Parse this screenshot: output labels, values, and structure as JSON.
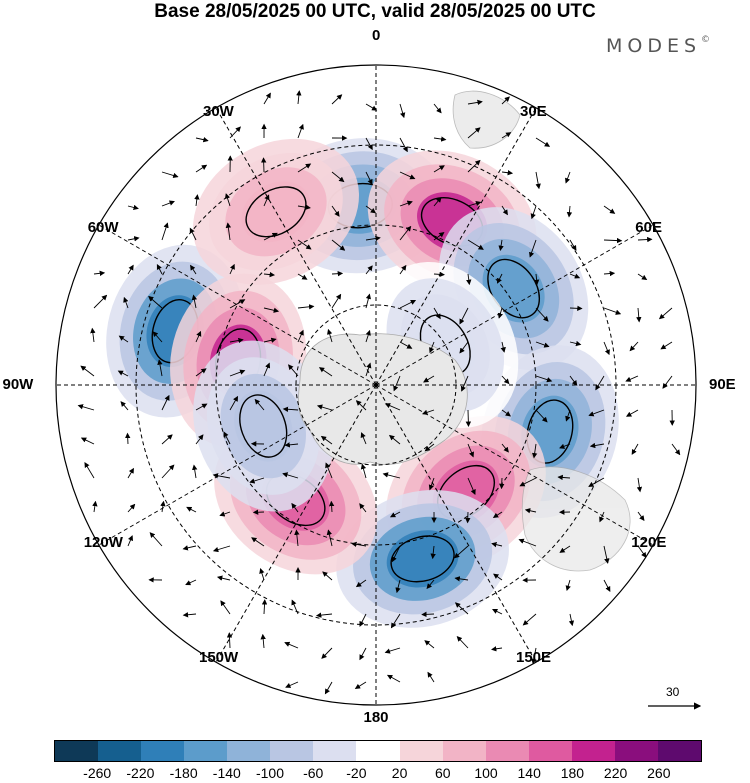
{
  "header": {
    "title": "Base 28/05/2025 00 UTC, valid 28/05/2025 00 UTC",
    "brand": "MODES"
  },
  "map": {
    "projection": "south-polar-stereographic",
    "lon_labels": [
      "0",
      "30E",
      "60E",
      "90E",
      "120E",
      "150E",
      "180",
      "150W",
      "120W",
      "90W",
      "60W",
      "30W"
    ],
    "anomalies": [
      {
        "lon": -75,
        "lat": -38,
        "value": -200
      },
      {
        "lon": -80,
        "lat": -55,
        "value": 180
      },
      {
        "lon": -5,
        "lat": -45,
        "value": -180
      },
      {
        "lon": 25,
        "lat": -45,
        "value": 180
      },
      {
        "lon": 55,
        "lat": -48,
        "value": -160
      },
      {
        "lon": 105,
        "lat": -45,
        "value": -160
      },
      {
        "lon": 140,
        "lat": -55,
        "value": 140
      },
      {
        "lon": 165,
        "lat": -45,
        "value": -200
      },
      {
        "lon": -145,
        "lat": -55,
        "value": 160
      },
      {
        "lon": 60,
        "lat": -70,
        "value": -60
      },
      {
        "lon": -110,
        "lat": -60,
        "value": -100
      },
      {
        "lon": -30,
        "lat": -40,
        "value": 80
      }
    ],
    "vector_reference": "30"
  },
  "colorbar": {
    "ticks": [
      "-260",
      "-220",
      "-180",
      "-140",
      "-100",
      "-60",
      "-20",
      "20",
      "60",
      "100",
      "140",
      "180",
      "220",
      "260"
    ],
    "colors": [
      "#0e3957",
      "#155f8f",
      "#2f7fb8",
      "#5c9ccb",
      "#8fb3d9",
      "#b9c6e3",
      "#dcdff0",
      "#ffffff",
      "#f6d5da",
      "#f2b4c6",
      "#ea8ab3",
      "#df5aa0",
      "#c3228f",
      "#8a0e7d",
      "#5e0a6e"
    ]
  }
}
